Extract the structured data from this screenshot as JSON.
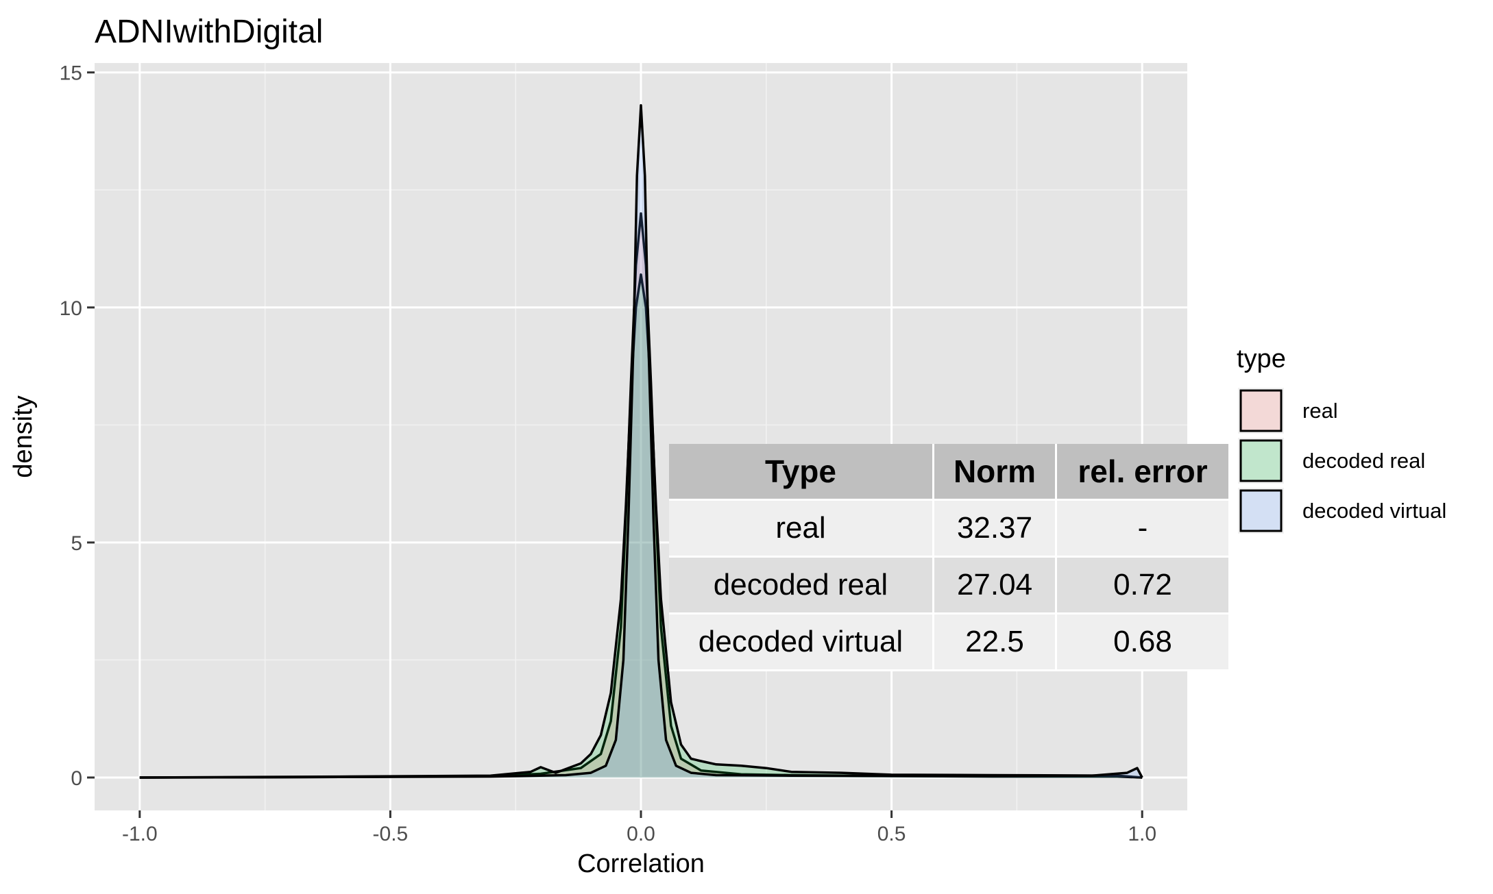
{
  "chart_data": {
    "type": "area",
    "title": "ADNIwithDigital",
    "xlabel": "Correlation",
    "ylabel": "density",
    "xlim": [
      -1.09,
      1.09
    ],
    "ylim": [
      -0.7,
      15.2
    ],
    "x_ticks": [
      -1.0,
      -0.5,
      0.0,
      0.5,
      1.0
    ],
    "x_tick_labels": [
      "-1.0",
      "-0.5",
      "0.0",
      "0.5",
      "1.0"
    ],
    "y_ticks": [
      0,
      5,
      10,
      15
    ],
    "y_tick_labels": [
      "0",
      "5",
      "10",
      "15"
    ],
    "grid": true,
    "legend": {
      "title": "type",
      "placement": "right",
      "entries": [
        {
          "name": "real",
          "color": "#F8766D"
        },
        {
          "name": "decoded real",
          "color": "#00BA38"
        },
        {
          "name": "decoded virtual",
          "color": "#619CFF"
        }
      ]
    },
    "series": [
      {
        "name": "real",
        "color": "#F8766D",
        "x": [
          -1.0,
          -0.6,
          -0.3,
          -0.2,
          -0.12,
          -0.08,
          -0.06,
          -0.04,
          -0.03,
          -0.02,
          -0.01,
          0.0,
          0.01,
          0.02,
          0.03,
          0.04,
          0.06,
          0.08,
          0.12,
          0.2,
          0.3,
          0.5,
          0.7,
          0.95,
          1.0
        ],
        "y": [
          0.0,
          0.01,
          0.03,
          0.08,
          0.2,
          0.5,
          1.2,
          3.2,
          5.6,
          8.4,
          10.9,
          12.0,
          10.9,
          8.4,
          5.6,
          3.2,
          1.1,
          0.4,
          0.15,
          0.07,
          0.05,
          0.03,
          0.02,
          0.02,
          0.0
        ]
      },
      {
        "name": "decoded real",
        "color": "#00BA38",
        "x": [
          -1.0,
          -0.6,
          -0.3,
          -0.22,
          -0.2,
          -0.17,
          -0.12,
          -0.1,
          -0.08,
          -0.06,
          -0.04,
          -0.03,
          -0.02,
          -0.01,
          0.0,
          0.01,
          0.02,
          0.03,
          0.04,
          0.06,
          0.08,
          0.1,
          0.12,
          0.15,
          0.2,
          0.25,
          0.3,
          0.4,
          0.5,
          0.7,
          0.95,
          1.0
        ],
        "y": [
          0.0,
          0.02,
          0.04,
          0.12,
          0.22,
          0.1,
          0.3,
          0.5,
          0.9,
          1.8,
          3.8,
          5.8,
          8.2,
          10.0,
          10.7,
          10.0,
          8.2,
          5.8,
          3.8,
          1.6,
          0.7,
          0.4,
          0.35,
          0.28,
          0.25,
          0.2,
          0.12,
          0.1,
          0.06,
          0.05,
          0.04,
          0.0
        ]
      },
      {
        "name": "decoded virtual",
        "color": "#619CFF",
        "x": [
          -1.0,
          -0.6,
          -0.3,
          -0.15,
          -0.1,
          -0.07,
          -0.05,
          -0.035,
          -0.025,
          -0.015,
          -0.008,
          0.0,
          0.008,
          0.015,
          0.025,
          0.035,
          0.05,
          0.07,
          0.1,
          0.15,
          0.3,
          0.6,
          0.9,
          0.97,
          0.99,
          1.0
        ],
        "y": [
          0.0,
          0.01,
          0.02,
          0.05,
          0.1,
          0.25,
          0.8,
          2.5,
          5.5,
          9.2,
          12.8,
          14.3,
          12.8,
          9.2,
          5.5,
          2.5,
          0.8,
          0.25,
          0.1,
          0.05,
          0.04,
          0.03,
          0.04,
          0.1,
          0.2,
          0.0
        ]
      }
    ],
    "table": {
      "headers": [
        "Type",
        "Norm",
        "rel. error"
      ],
      "rows": [
        [
          "real",
          "32.37",
          "-"
        ],
        [
          "decoded real",
          "27.04",
          "0.72"
        ],
        [
          "decoded virtual",
          "22.5",
          "0.68"
        ]
      ]
    }
  }
}
